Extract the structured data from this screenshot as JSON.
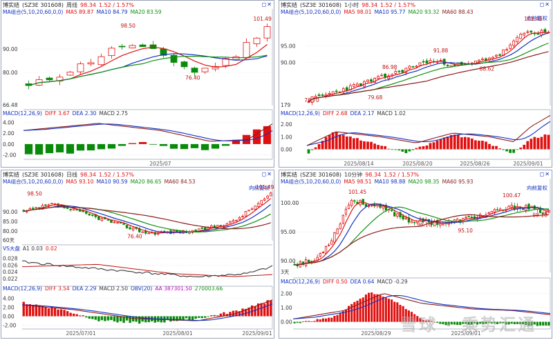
{
  "panels": [
    {
      "id": "weekly",
      "header": {
        "name": "博实结",
        "code": "(SZ3E 301608)",
        "period": "周线",
        "price": "98.34",
        "change": "1.52 / 1.57%"
      },
      "ma": {
        "label": "MA组合(5,10,20,60,0,0)",
        "ma5": "MA5 89.87",
        "ma10": "MA10 84.79",
        "ma20": "MA20 83.59"
      },
      "fq": "",
      "ticks": [
        "90.00",
        "80.00"
      ],
      "annotations": [
        "98.50",
        "101.49",
        "76.40"
      ],
      "corner": "66.48",
      "macd": {
        "label": "MACD(12,26,9)",
        "diff": "DIFF 3.67",
        "dea": "DEA 2.30",
        "macd": "MACD 2.75"
      },
      "macd_ticks": [
        "4.00",
        "2.00",
        "0.00",
        "-2.00"
      ],
      "dates": [
        "2025/07"
      ]
    },
    {
      "id": "hourly",
      "header": {
        "name": "博实结",
        "code": "(SZ3E 301608)",
        "period": "1小时",
        "price": "98.34",
        "change": "1.52 / 1.57%"
      },
      "ma": {
        "label": "MA组合(5,10,20,60,0,0)",
        "ma5": "MA5 98.01",
        "ma10": "MA10 95.77",
        "ma20": "MA20 93.32",
        "ma60": "MA60 88.43"
      },
      "fq": "向前复权",
      "ticks": [
        "95.00",
        "90.00"
      ],
      "annotations": [
        "101.45",
        "91.88",
        "86.98",
        "88.62",
        "79.68",
        "78.70"
      ],
      "corner": "179",
      "macd": {
        "label": "MACD(12,26,9)",
        "diff": "DIFF 2.68",
        "dea": "DEA 2.17",
        "macd": "MACD 1.02"
      },
      "macd_ticks": [
        "2.00",
        "1.00",
        "0.00"
      ],
      "dates": [
        "2025/08/14",
        "2025/08/20",
        "2025/08/26",
        "2025/09/01"
      ]
    },
    {
      "id": "daily",
      "header": {
        "name": "博实结",
        "code": "(SZ3E 301608)",
        "period": "日线",
        "price": "98.34",
        "change": "1.52 / 1.57%"
      },
      "ma": {
        "label": "MA组合(5,10,20,60,0,0)",
        "ma5": "MA5 93.10",
        "ma10": "MA10 90.59",
        "ma20": "MA20 86.65",
        "ma60": "MA60 84.53"
      },
      "fq": "向前复权",
      "ticks": [
        "90.00",
        "85.00",
        "80.00"
      ],
      "annotations": [
        "98.50",
        "101.49",
        "76.40"
      ],
      "corner": "60天",
      "vs": {
        "label": "VS大盘",
        "a1": "A1 0.03",
        "val": "0.02"
      },
      "vs_ticks": [
        "0.028",
        "0.026",
        "0.024",
        "0.022"
      ],
      "macd": {
        "label": "MACD(12,26,9)",
        "diff": "DIFF 3.54",
        "dea": "DEA 2.29",
        "macd": "MACD 2.50",
        "obv": "OBV(20)",
        "aa": "AA 387301.50",
        "obv2": "270003.66"
      },
      "macd_ticks": [
        "4.00",
        "2.00",
        "0.00",
        "-2.00"
      ],
      "dates": [
        "2025/07/01",
        "2025/08/01",
        "2025/09/01"
      ]
    },
    {
      "id": "min10",
      "header": {
        "name": "博实结",
        "code": "(SZ3E 301608)",
        "period": "10分钟",
        "price": "98.34",
        "change": "1.52 / 1.57%"
      },
      "ma": {
        "label": "MA组合(5,10,20,60,0,0)",
        "ma5": "MA5 98.51",
        "ma10": "MA10 98.88",
        "ma20": "MA20 98.35",
        "ma60": "MA60 95.93"
      },
      "fq": "向前复权",
      "ticks": [
        "100.00",
        "95.00",
        "90.00"
      ],
      "annotations": [
        "101.45",
        "100.47",
        "96.16",
        "95.10",
        "98.18"
      ],
      "corner": "3天",
      "macd": {
        "label": "MACD(12,26,9)",
        "diff": "DIFF 0.50",
        "dea": "DEA 0.64",
        "macd": "MACD -0.29"
      },
      "macd_ticks": [
        "2.00",
        "1.00",
        "0.00"
      ],
      "dates": [
        "2025/08/29",
        "2025/09/01"
      ]
    }
  ],
  "chart_data": [
    {
      "type": "candlestick",
      "title": "博实结 周线",
      "ylim": [
        66,
        104
      ],
      "price_high": 101.49,
      "price_low": 76.4,
      "macd_ylim": [
        -2.8,
        4.8
      ],
      "x_label": "2025/07"
    },
    {
      "type": "candlestick",
      "title": "博实结 1小时",
      "ylim": [
        77,
        104
      ],
      "price_high": 101.45,
      "price_low": 78.7,
      "macd_ylim": [
        -0.8,
        2.5
      ],
      "x_labels": [
        "2025/08/14",
        "2025/08/20",
        "2025/08/26",
        "2025/09/01"
      ]
    },
    {
      "type": "candlestick",
      "title": "博实结 日线",
      "ylim": [
        75,
        103
      ],
      "price_high": 101.49,
      "price_low": 76.4,
      "vs_ylim": [
        0.021,
        0.0295
      ],
      "macd_ylim": [
        -2.8,
        4.8
      ],
      "x_labels": [
        "2025/07/01",
        "2025/08/01",
        "2025/09/01"
      ]
    },
    {
      "type": "candlestick",
      "title": "博实结 10分钟",
      "ylim": [
        88,
        103
      ],
      "price_high": 101.45,
      "price_low": 95.1,
      "macd_ylim": [
        -0.5,
        2.5
      ],
      "x_labels": [
        "2025/08/29",
        "2025/09/01"
      ]
    }
  ],
  "watermark": "雪球 · 乘势汇通"
}
